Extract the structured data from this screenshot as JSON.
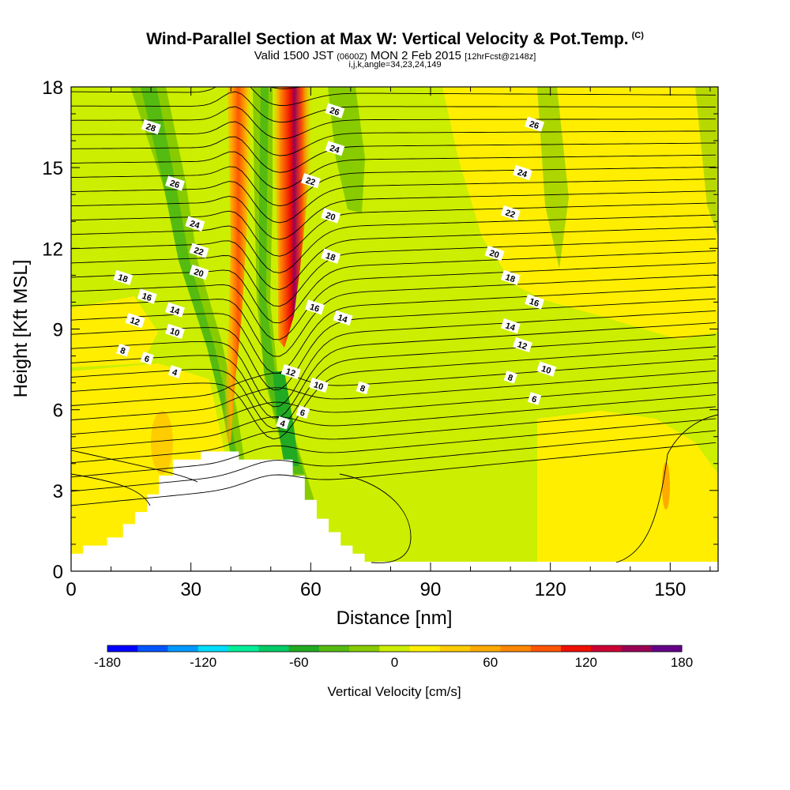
{
  "header": {
    "title": "Wind-Parallel Section at Max W: Vertical Velocity & Pot.Temp.",
    "copyright": "(C)",
    "valid_main": "Valid 1500 JST",
    "valid_z": "(0600Z)",
    "valid_date": "MON 2 Feb 2015",
    "valid_fcst": "[12hrFcst@2148z]",
    "indices": "i,j,k,angle=34,23,24,149"
  },
  "chart_data": {
    "type": "contour",
    "xlabel": "Distance [nm]",
    "ylabel": "Height [Kft MSL]",
    "xlim": [
      0,
      162
    ],
    "ylim": [
      0,
      18
    ],
    "xticks": [
      "0",
      "30",
      "60",
      "90",
      "120",
      "150"
    ],
    "yticks": [
      "0",
      "3",
      "6",
      "9",
      "12",
      "15",
      "18"
    ],
    "colorbar": {
      "label": "Vertical Velocity [cm/s]",
      "ticks": [
        "-180",
        "-120",
        "-60",
        "0",
        "60",
        "120",
        "180"
      ],
      "levels": [
        -180,
        180
      ],
      "colors": [
        "#0000ff",
        "#0055ff",
        "#0099ff",
        "#00ddff",
        "#00ee99",
        "#00cc66",
        "#22aa22",
        "#55bb11",
        "#88cc00",
        "#ccee00",
        "#ffee00",
        "#ffcc00",
        "#ffaa00",
        "#ff8800",
        "#ff5500",
        "#ee1100",
        "#cc0033",
        "#990055",
        "#660088"
      ]
    },
    "terrain_kft": [
      [
        0,
        0.65
      ],
      [
        3,
        0.65
      ],
      [
        3,
        0.95
      ],
      [
        9,
        0.95
      ],
      [
        9,
        1.25
      ],
      [
        13,
        1.25
      ],
      [
        13,
        1.75
      ],
      [
        16,
        1.75
      ],
      [
        16,
        2.2
      ],
      [
        19,
        2.2
      ],
      [
        19,
        2.85
      ],
      [
        22,
        2.85
      ],
      [
        22,
        3.55
      ],
      [
        25.5,
        3.55
      ],
      [
        25.5,
        4.15
      ],
      [
        32.5,
        4.15
      ],
      [
        32.5,
        4.45
      ],
      [
        42,
        4.45
      ],
      [
        42,
        4.15
      ],
      [
        55.5,
        4.15
      ],
      [
        55.5,
        3.55
      ],
      [
        58.5,
        3.55
      ],
      [
        58.5,
        2.65
      ],
      [
        61.5,
        2.65
      ],
      [
        61.5,
        1.95
      ],
      [
        64.5,
        1.95
      ],
      [
        64.5,
        1.45
      ],
      [
        67.5,
        1.45
      ],
      [
        67.5,
        0.95
      ],
      [
        70.5,
        0.95
      ],
      [
        70.5,
        0.65
      ],
      [
        73.5,
        0.65
      ],
      [
        73.5,
        0.35
      ],
      [
        162,
        0.35
      ]
    ],
    "theta_labels": [
      {
        "v": "28",
        "x": 20,
        "y": 16.5
      },
      {
        "v": "26",
        "x": 26,
        "y": 14.4
      },
      {
        "v": "24",
        "x": 31,
        "y": 12.9
      },
      {
        "v": "22",
        "x": 32,
        "y": 11.9
      },
      {
        "v": "20",
        "x": 32,
        "y": 11.1
      },
      {
        "v": "18",
        "x": 13,
        "y": 10.9
      },
      {
        "v": "16",
        "x": 19,
        "y": 10.2
      },
      {
        "v": "14",
        "x": 26,
        "y": 9.7
      },
      {
        "v": "12",
        "x": 16,
        "y": 9.3
      },
      {
        "v": "10",
        "x": 26,
        "y": 8.9
      },
      {
        "v": "8",
        "x": 13,
        "y": 8.2
      },
      {
        "v": "6",
        "x": 19,
        "y": 7.9
      },
      {
        "v": "4",
        "x": 26,
        "y": 7.4
      },
      {
        "v": "26",
        "x": 66,
        "y": 17.1
      },
      {
        "v": "24",
        "x": 66,
        "y": 15.7
      },
      {
        "v": "22",
        "x": 60,
        "y": 14.5
      },
      {
        "v": "20",
        "x": 65,
        "y": 13.2
      },
      {
        "v": "18",
        "x": 65,
        "y": 11.7
      },
      {
        "v": "16",
        "x": 61,
        "y": 9.8
      },
      {
        "v": "14",
        "x": 68,
        "y": 9.4
      },
      {
        "v": "12",
        "x": 55,
        "y": 7.4
      },
      {
        "v": "10",
        "x": 62,
        "y": 6.9
      },
      {
        "v": "8",
        "x": 73,
        "y": 6.8
      },
      {
        "v": "6",
        "x": 58,
        "y": 5.9
      },
      {
        "v": "4",
        "x": 53,
        "y": 5.5
      },
      {
        "v": "26",
        "x": 116,
        "y": 16.6
      },
      {
        "v": "24",
        "x": 113,
        "y": 14.8
      },
      {
        "v": "22",
        "x": 110,
        "y": 13.3
      },
      {
        "v": "20",
        "x": 106,
        "y": 11.8
      },
      {
        "v": "18",
        "x": 110,
        "y": 10.9
      },
      {
        "v": "16",
        "x": 116,
        "y": 10.0
      },
      {
        "v": "14",
        "x": 110,
        "y": 9.1
      },
      {
        "v": "12",
        "x": 113,
        "y": 8.4
      },
      {
        "v": "10",
        "x": 119,
        "y": 7.5
      },
      {
        "v": "8",
        "x": 110,
        "y": 7.2
      },
      {
        "v": "6",
        "x": 116,
        "y": 6.4
      }
    ]
  }
}
